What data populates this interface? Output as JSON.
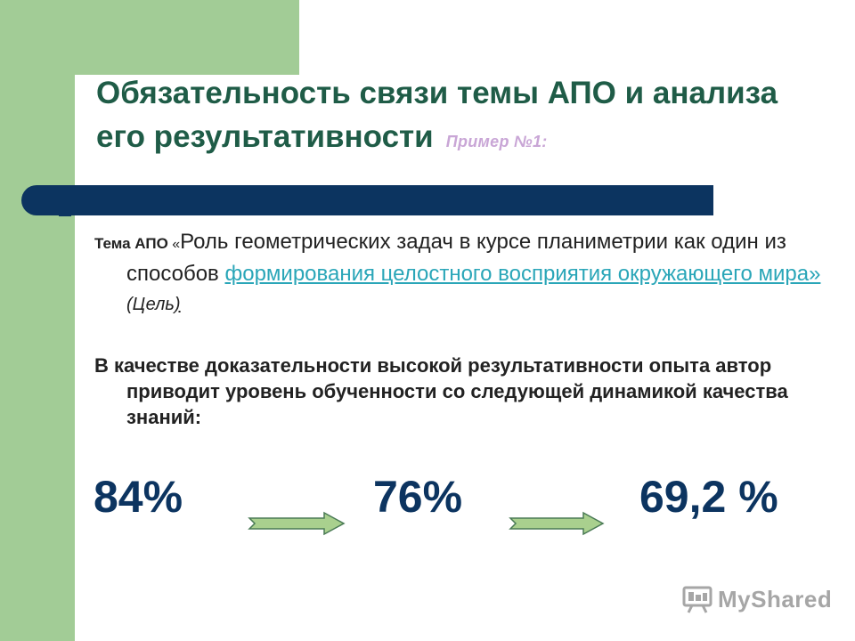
{
  "slide": {
    "title": "Обязательность связи темы АПО и анализа его результативности",
    "example_label": "Пример №1:"
  },
  "topic": {
    "label": "Тема АПО",
    "quote_open": " «",
    "text": "Роль геометрических задач в курсе планиметрии как один из способов ",
    "link_text": "формирования целостного восприятия окружающего мира» ",
    "goal_open": "(Цель",
    "goal_close": ")"
  },
  "evidence": {
    "text": "В качестве доказательности высокой результативности опыта автор  приводит уровень обученности со следующей динамикой качества знаний:"
  },
  "dynamics": {
    "values": [
      "84%",
      "76%",
      "69,2 %"
    ]
  },
  "watermark": {
    "text": "MyShared"
  },
  "colors": {
    "green_panel": "#a2cc96",
    "title_text": "#1f5c47",
    "navy_bar": "#0c3460",
    "link": "#2aa6b8",
    "example_label": "#c9a6d6",
    "arrow_fill": "#a9d08e"
  },
  "icons": {
    "arrow": "right-arrow-icon",
    "watermark_logo": "presentation-board-icon"
  }
}
